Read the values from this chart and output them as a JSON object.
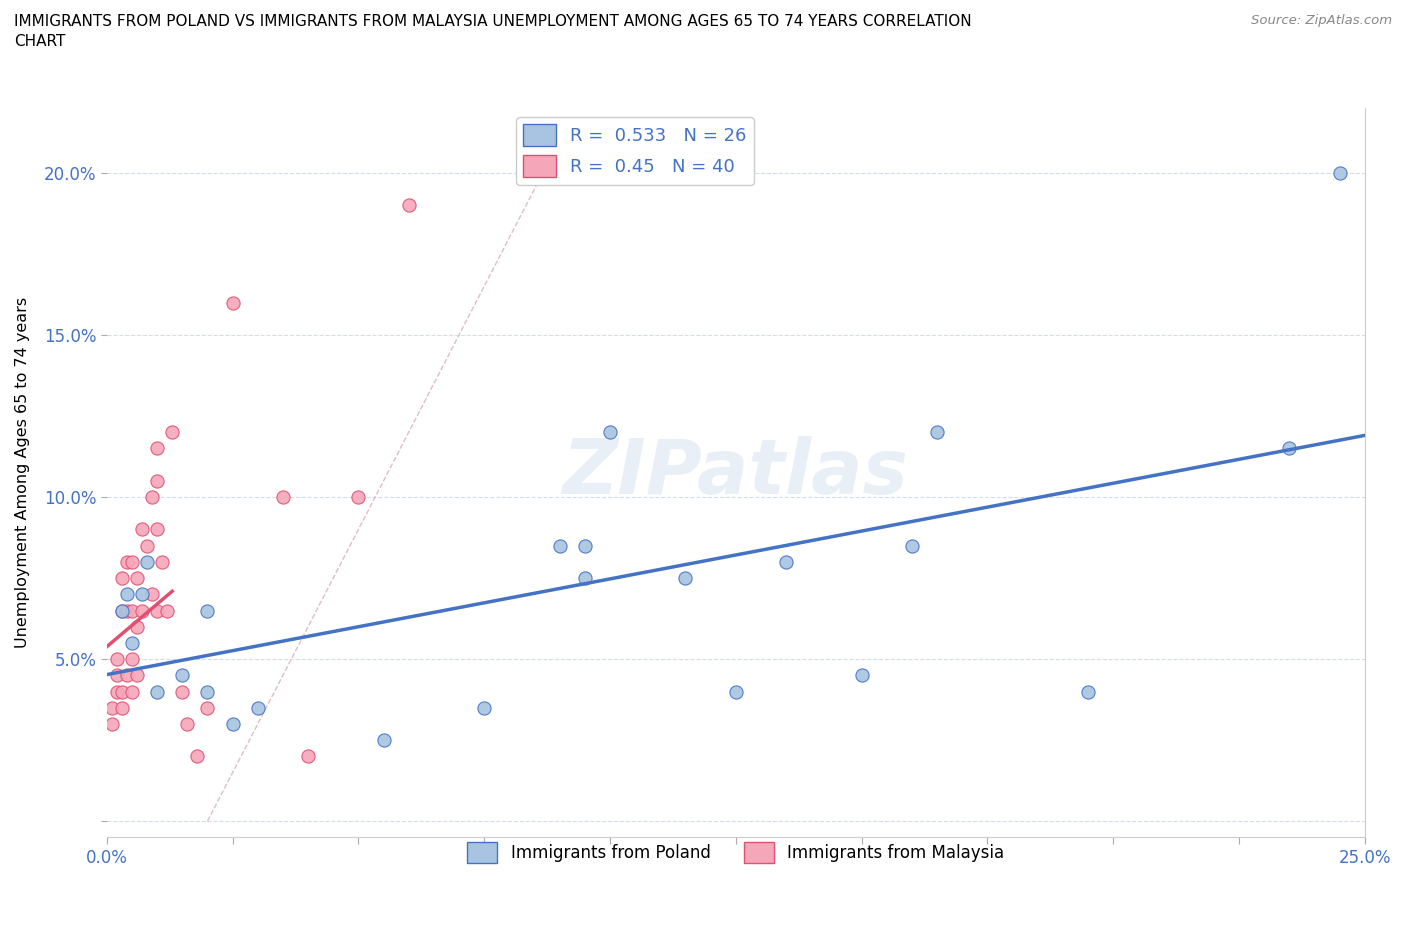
{
  "title": "IMMIGRANTS FROM POLAND VS IMMIGRANTS FROM MALAYSIA UNEMPLOYMENT AMONG AGES 65 TO 74 YEARS CORRELATION\nCHART",
  "source": "Source: ZipAtlas.com",
  "ylabel": "Unemployment Among Ages 65 to 74 years",
  "xlim": [
    0.0,
    0.25
  ],
  "ylim": [
    -0.005,
    0.22
  ],
  "xticks": [
    0.0,
    0.025,
    0.05,
    0.075,
    0.1,
    0.125,
    0.15,
    0.175,
    0.2,
    0.225,
    0.25
  ],
  "yticks": [
    0.0,
    0.05,
    0.1,
    0.15,
    0.2
  ],
  "poland_R": 0.533,
  "poland_N": 26,
  "malaysia_R": 0.45,
  "malaysia_N": 40,
  "poland_color": "#a8c4e0",
  "malaysia_color": "#f4a7b9",
  "poland_line_color": "#4472c4",
  "malaysia_line_color": "#e05070",
  "watermark": "ZIPatlas",
  "poland_x": [
    0.003,
    0.004,
    0.005,
    0.007,
    0.008,
    0.01,
    0.015,
    0.02,
    0.02,
    0.025,
    0.03,
    0.055,
    0.075,
    0.09,
    0.095,
    0.095,
    0.1,
    0.115,
    0.125,
    0.135,
    0.15,
    0.16,
    0.165,
    0.195,
    0.235,
    0.245
  ],
  "poland_y": [
    0.065,
    0.07,
    0.055,
    0.07,
    0.08,
    0.04,
    0.045,
    0.04,
    0.065,
    0.03,
    0.035,
    0.025,
    0.035,
    0.085,
    0.085,
    0.075,
    0.12,
    0.075,
    0.04,
    0.08,
    0.045,
    0.085,
    0.12,
    0.04,
    0.115,
    0.2
  ],
  "malaysia_x": [
    0.001,
    0.001,
    0.002,
    0.002,
    0.002,
    0.003,
    0.003,
    0.003,
    0.003,
    0.004,
    0.004,
    0.004,
    0.005,
    0.005,
    0.005,
    0.005,
    0.006,
    0.006,
    0.006,
    0.007,
    0.007,
    0.008,
    0.009,
    0.009,
    0.01,
    0.01,
    0.01,
    0.01,
    0.011,
    0.012,
    0.013,
    0.015,
    0.016,
    0.018,
    0.02,
    0.025,
    0.035,
    0.04,
    0.05,
    0.06
  ],
  "malaysia_y": [
    0.03,
    0.035,
    0.04,
    0.045,
    0.05,
    0.035,
    0.04,
    0.065,
    0.075,
    0.045,
    0.065,
    0.08,
    0.04,
    0.05,
    0.065,
    0.08,
    0.045,
    0.06,
    0.075,
    0.065,
    0.09,
    0.085,
    0.07,
    0.1,
    0.065,
    0.09,
    0.105,
    0.115,
    0.08,
    0.065,
    0.12,
    0.04,
    0.03,
    0.02,
    0.035,
    0.16,
    0.1,
    0.02,
    0.1,
    0.19
  ],
  "malaysia_line_x": [
    0.0,
    0.013
  ],
  "dashed_line_x": [
    0.0,
    0.13
  ],
  "dashed_line_slope": 1.5,
  "dashed_line_intercept": 0.0
}
